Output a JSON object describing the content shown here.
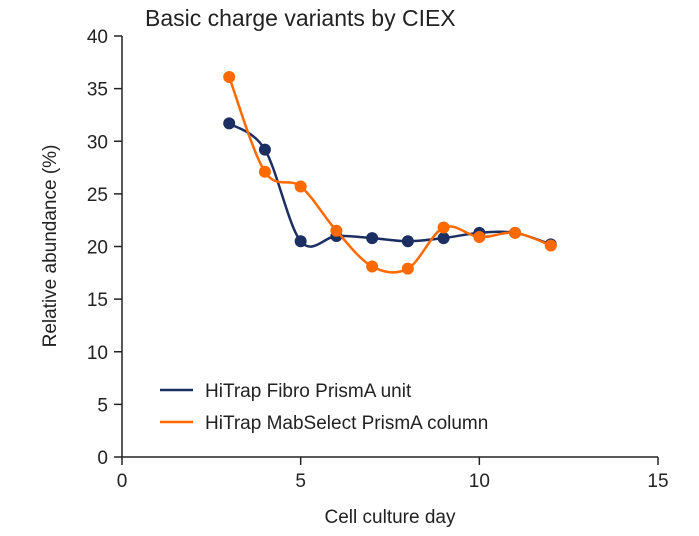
{
  "chart_data": {
    "type": "line",
    "title": "Basic charge variants by CIEX",
    "xlabel": "Cell culture day",
    "ylabel": "Relative abundance (%)",
    "xlim": [
      0,
      15
    ],
    "ylim": [
      0,
      40
    ],
    "xticks": [
      0,
      5,
      10,
      15
    ],
    "yticks": [
      0,
      5,
      10,
      15,
      20,
      25,
      30,
      35,
      40
    ],
    "grid": false,
    "smoothed": true,
    "legend_position": "bottom-left",
    "x": [
      3,
      4,
      5,
      6,
      7,
      8,
      9,
      10,
      11,
      12
    ],
    "series": [
      {
        "name": "HiTrap Fibro PrismA unit",
        "color": "#1c2f63",
        "values": [
          31.7,
          29.2,
          20.5,
          21.0,
          20.8,
          20.5,
          20.8,
          21.3,
          21.3,
          20.2
        ]
      },
      {
        "name": "HiTrap MabSelect PrismA column",
        "color": "#ff6a00",
        "values": [
          36.1,
          27.1,
          25.7,
          21.5,
          18.1,
          17.9,
          21.8,
          20.9,
          21.3,
          20.1
        ]
      }
    ]
  }
}
